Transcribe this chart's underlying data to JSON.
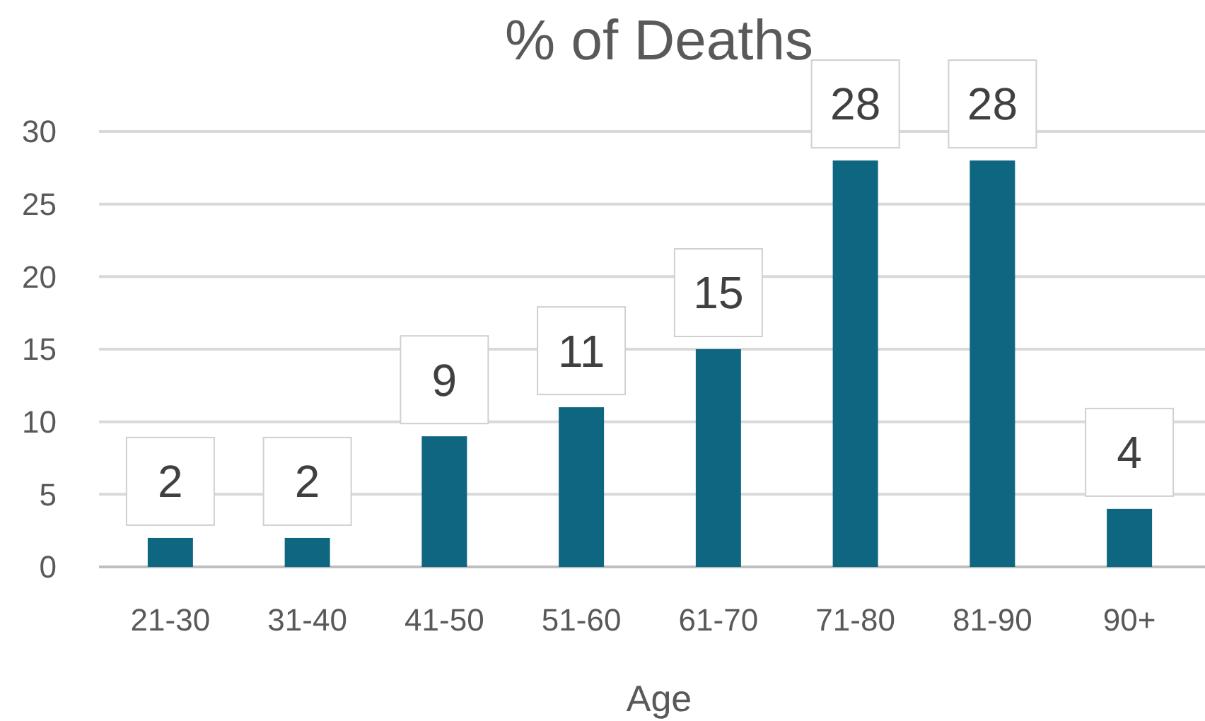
{
  "chart_data": {
    "type": "bar",
    "title": "% of Deaths",
    "xlabel": "Age",
    "categories": [
      "21-30",
      "31-40",
      "41-50",
      "51-60",
      "61-70",
      "71-80",
      "81-90",
      "90+"
    ],
    "values": [
      2,
      2,
      9,
      11,
      15,
      28,
      28,
      4
    ],
    "color": "#0e6680",
    "ylim": [
      0,
      30
    ],
    "yticks": [
      0,
      5,
      10,
      15,
      20,
      25,
      30
    ],
    "grid": "y",
    "data_labels": true
  }
}
